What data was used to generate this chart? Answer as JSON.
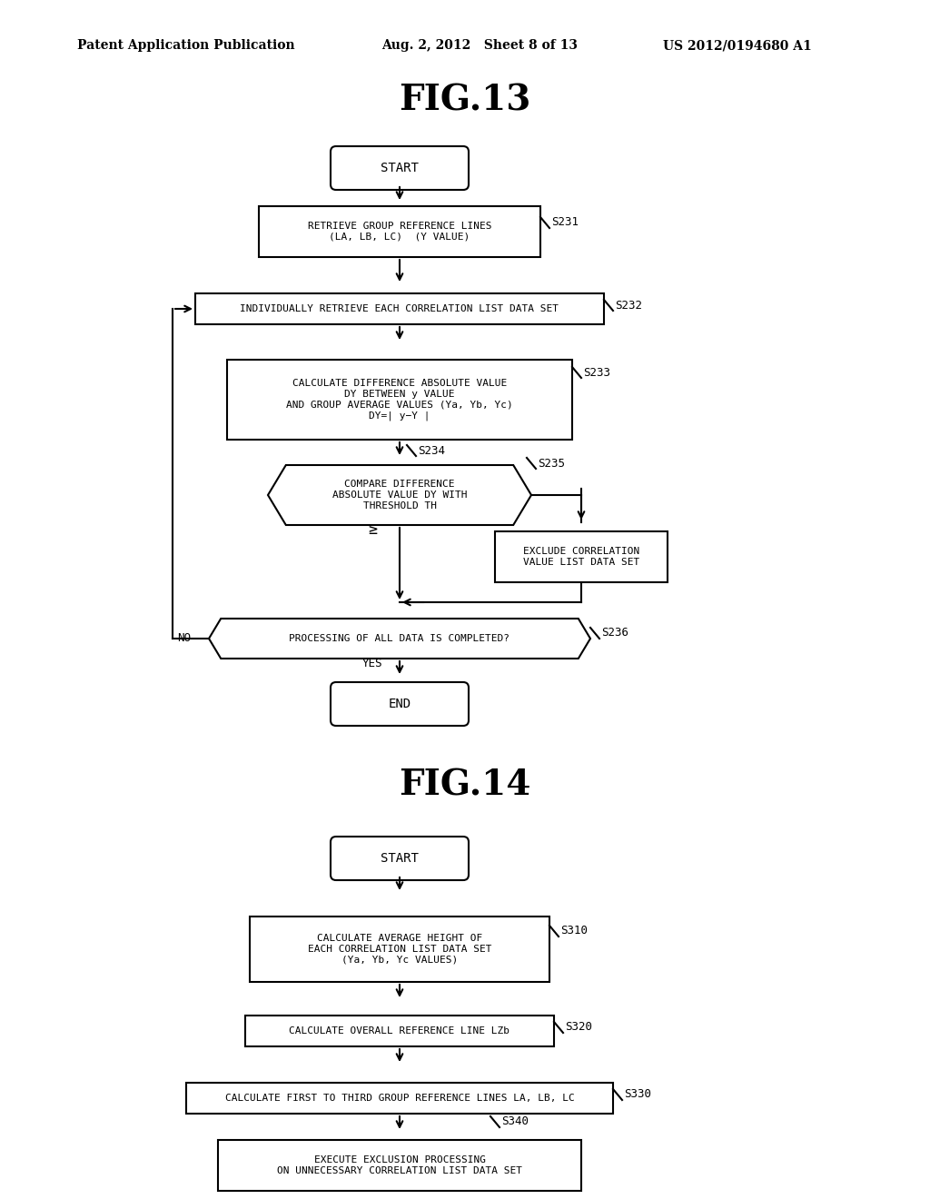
{
  "background_color": "#ffffff",
  "header_left": "Patent Application Publication",
  "header_mid": "Aug. 2, 2012   Sheet 8 of 13",
  "header_right": "US 2012/0194680 A1",
  "fig13_title": "FIG.13",
  "fig14_title": "FIG.14"
}
